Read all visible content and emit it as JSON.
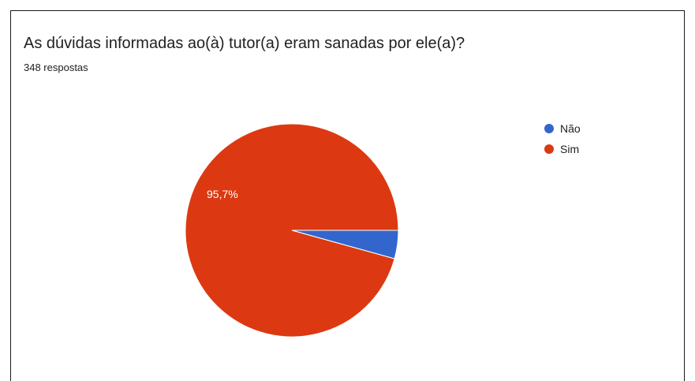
{
  "form": {
    "question": "As dúvidas informadas ao(à) tutor(a) eram sanadas por ele(a)?",
    "responses": "348 respostas"
  },
  "chart_data": {
    "type": "pie",
    "title": "As dúvidas informadas ao(à) tutor(a) eram sanadas por ele(a)?",
    "categories": [
      "Não",
      "Sim"
    ],
    "values": [
      4.3,
      95.7
    ],
    "unit": "%",
    "colors": [
      "#3366cc",
      "#dc3912"
    ],
    "data_labels": [
      "",
      "95,7%"
    ],
    "label_color": "#ffffff",
    "legend": "right"
  }
}
